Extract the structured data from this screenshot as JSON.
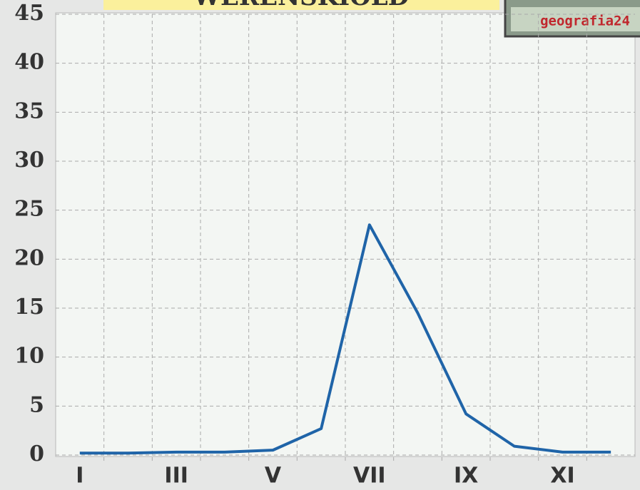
{
  "chart_data": {
    "type": "line",
    "title": "WERENSKIOLD",
    "logo": "geografia24",
    "categories": [
      "I",
      null,
      "III",
      null,
      "V",
      null,
      "VII",
      null,
      "IX",
      null,
      "XI",
      null
    ],
    "series": [
      {
        "color": "#1f64a8",
        "values": [
          0.2,
          0.2,
          0.3,
          0.3,
          0.5,
          2.7,
          23.5,
          14.5,
          4.2,
          0.9,
          0.3,
          0.3
        ]
      }
    ],
    "ylim": [
      0,
      45
    ],
    "yticks": [
      0,
      5,
      10,
      15,
      20,
      25,
      30,
      35,
      40,
      45
    ],
    "grid": true
  }
}
